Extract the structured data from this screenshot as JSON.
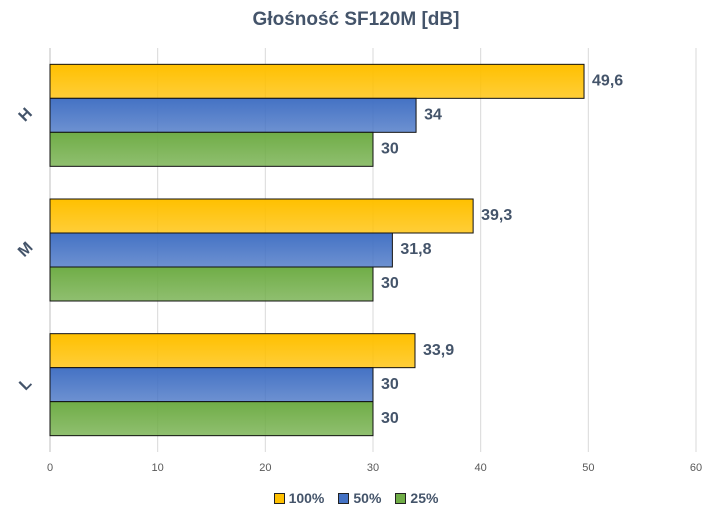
{
  "chart_data": {
    "type": "bar",
    "orientation": "horizontal",
    "title": "Głośność SF120M [dB]",
    "categories": [
      "H",
      "M",
      "L"
    ],
    "series": [
      {
        "name": "100%",
        "values": [
          49.6,
          39.3,
          33.9
        ],
        "labels": [
          "49,6",
          "39,3",
          "33,9"
        ],
        "color": "#ffc000"
      },
      {
        "name": "50%",
        "values": [
          34,
          31.8,
          30
        ],
        "labels": [
          "34",
          "31,8",
          "30"
        ],
        "color": "#4472c4"
      },
      {
        "name": "25%",
        "values": [
          30,
          30,
          30
        ],
        "labels": [
          "30",
          "30",
          "30"
        ],
        "color": "#70ad47"
      }
    ],
    "xlim": [
      0,
      60
    ],
    "xticks": [
      0,
      10,
      20,
      30,
      40,
      50,
      60
    ],
    "grid": true,
    "legend": "bottom"
  }
}
